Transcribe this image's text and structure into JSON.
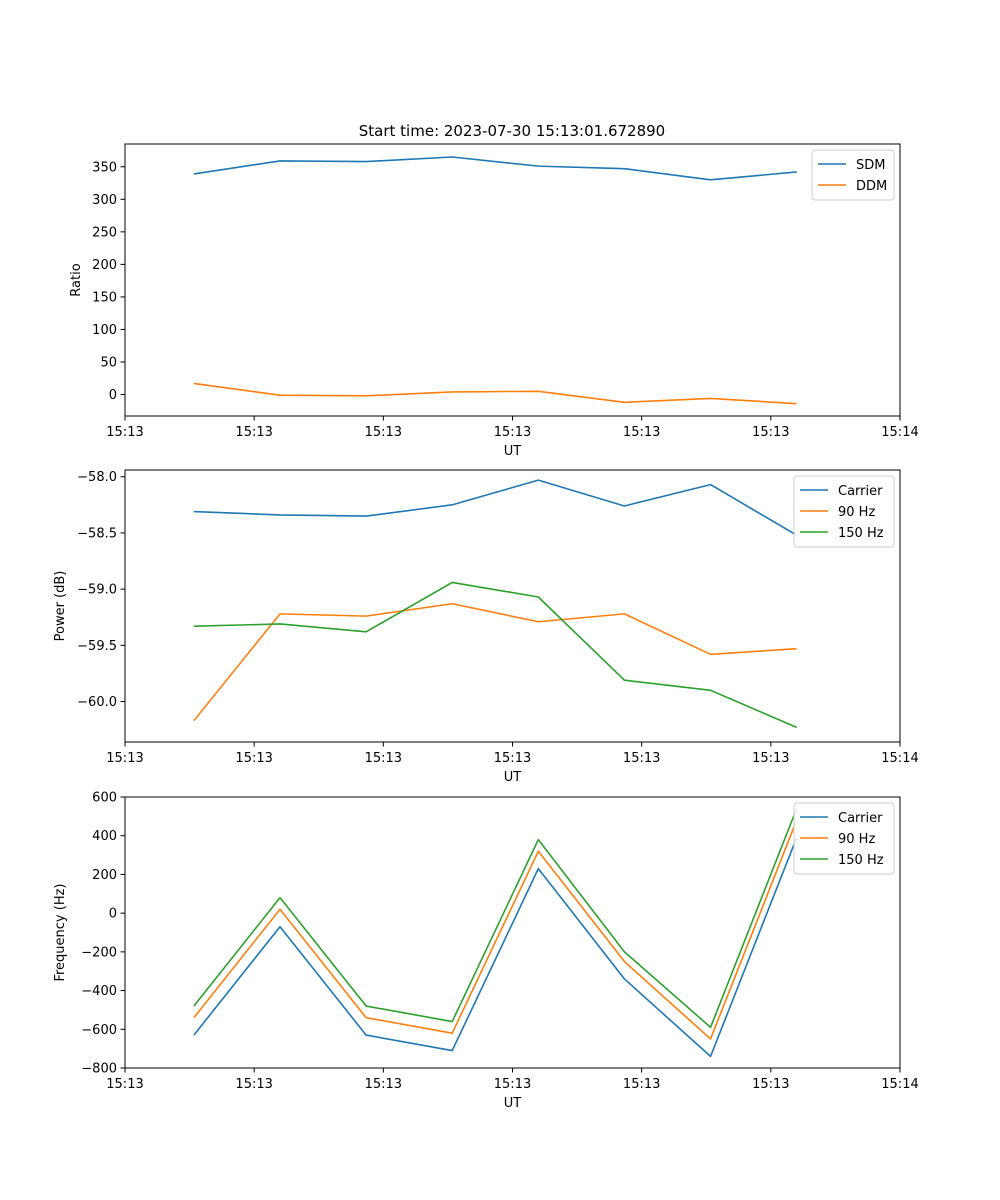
{
  "figure_title": "Start time: 2023-07-30 15:13:01.672890",
  "colors": {
    "blue": "#1f77b4",
    "orange": "#ff7f0e",
    "green": "#2ca02c"
  },
  "chart_data": [
    {
      "type": "line",
      "title": "Start time: 2023-07-30 15:13:01.672890",
      "xlabel": "UT",
      "ylabel": "Ratio",
      "x": [
        1,
        2,
        3,
        4,
        5,
        6,
        7,
        8
      ],
      "xlim": [
        0.2,
        9.2
      ],
      "x_ticks": [
        0.2,
        1.7,
        3.2,
        4.7,
        6.2,
        7.7,
        9.2
      ],
      "x_tick_labels": [
        "15:13",
        "15:13",
        "15:13",
        "15:13",
        "15:13",
        "15:13",
        "15:14"
      ],
      "ylim": [
        -33,
        385
      ],
      "y_ticks": [
        0,
        50,
        100,
        150,
        200,
        250,
        300,
        350
      ],
      "y_tick_labels": [
        "0",
        "50",
        "100",
        "150",
        "200",
        "250",
        "300",
        "350"
      ],
      "legend_position": "top-right",
      "series": [
        {
          "name": "SDM",
          "color": "#1f77b4",
          "values": [
            339,
            359,
            358,
            365,
            351,
            347,
            330,
            342
          ]
        },
        {
          "name": "DDM",
          "color": "#ff7f0e",
          "values": [
            17,
            -1,
            -2,
            4,
            5,
            -12,
            -6,
            -14
          ]
        }
      ]
    },
    {
      "type": "line",
      "title": "",
      "xlabel": "UT",
      "ylabel": "Power (dB)",
      "x": [
        1,
        2,
        3,
        4,
        5,
        6,
        7,
        8
      ],
      "xlim": [
        0.2,
        9.2
      ],
      "x_ticks": [
        0.2,
        1.7,
        3.2,
        4.7,
        6.2,
        7.7,
        9.2
      ],
      "x_tick_labels": [
        "15:13",
        "15:13",
        "15:13",
        "15:13",
        "15:13",
        "15:13",
        "15:14"
      ],
      "ylim": [
        -60.36,
        -57.94
      ],
      "y_ticks": [
        -60.0,
        -59.5,
        -59.0,
        -58.5,
        -58.0
      ],
      "y_tick_labels": [
        "−60.0",
        "−59.5",
        "−59.0",
        "−58.5",
        "−58.0"
      ],
      "legend_position": "top-right",
      "series": [
        {
          "name": "Carrier",
          "color": "#1f77b4",
          "values": [
            -58.31,
            -58.34,
            -58.35,
            -58.25,
            -58.03,
            -58.26,
            -58.07,
            -58.52
          ]
        },
        {
          "name": "90 Hz",
          "color": "#ff7f0e",
          "values": [
            -60.17,
            -59.22,
            -59.24,
            -59.13,
            -59.29,
            -59.22,
            -59.58,
            -59.53
          ]
        },
        {
          "name": "150 Hz",
          "color": "#2ca02c",
          "values": [
            -59.33,
            -59.31,
            -59.38,
            -58.94,
            -59.07,
            -59.81,
            -59.9,
            -60.23
          ]
        }
      ]
    },
    {
      "type": "line",
      "title": "",
      "xlabel": "UT",
      "ylabel": "Frequency (Hz)",
      "x": [
        1,
        2,
        3,
        4,
        5,
        6,
        7,
        8
      ],
      "xlim": [
        0.2,
        9.2
      ],
      "x_ticks": [
        0.2,
        1.7,
        3.2,
        4.7,
        6.2,
        7.7,
        9.2
      ],
      "x_tick_labels": [
        "15:13",
        "15:13",
        "15:13",
        "15:13",
        "15:13",
        "15:13",
        "15:14"
      ],
      "ylim": [
        -800,
        600
      ],
      "y_ticks": [
        -800,
        -600,
        -400,
        -200,
        0,
        200,
        400,
        600
      ],
      "y_tick_labels": [
        "−800",
        "−600",
        "−400",
        "−200",
        "0",
        "200",
        "400",
        "600"
      ],
      "legend_position": "top-right",
      "series": [
        {
          "name": "Carrier",
          "color": "#1f77b4",
          "values": [
            -630,
            -70,
            -630,
            -710,
            230,
            -340,
            -740,
            390
          ]
        },
        {
          "name": "90 Hz",
          "color": "#ff7f0e",
          "values": [
            -540,
            20,
            -540,
            -620,
            320,
            -250,
            -650,
            480
          ]
        },
        {
          "name": "150 Hz",
          "color": "#2ca02c",
          "values": [
            -480,
            80,
            -480,
            -560,
            380,
            -200,
            -590,
            540
          ]
        }
      ]
    }
  ]
}
